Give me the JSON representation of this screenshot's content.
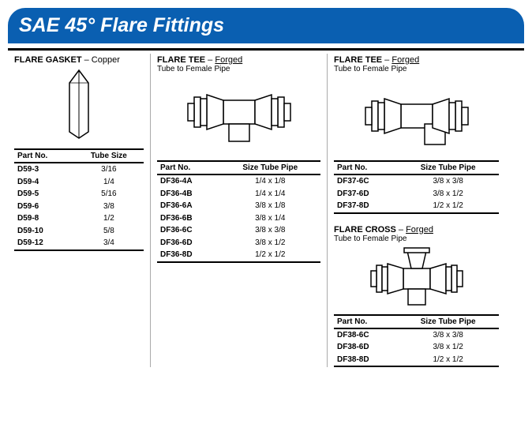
{
  "banner": "SAE 45° Flare Fittings",
  "colors": {
    "banner_bg": "#0a5fb1",
    "banner_fg": "#ffffff",
    "rule": "#000000"
  },
  "col1": {
    "gasket": {
      "title_bold": "FLARE GASKET",
      "title_rest": " – Copper",
      "headers": [
        "Part No.",
        "Tube Size"
      ],
      "rows": [
        [
          "D59-3",
          "3/16"
        ],
        [
          "D59-4",
          "1/4"
        ],
        [
          "D59-5",
          "5/16"
        ],
        [
          "D59-6",
          "3/8"
        ],
        [
          "D59-8",
          "1/2"
        ],
        [
          "D59-10",
          "5/8"
        ],
        [
          "D59-12",
          "3/4"
        ]
      ]
    }
  },
  "col2": {
    "tee": {
      "title_bold": "FLARE TEE",
      "title_dash": " – ",
      "title_u": "Forged",
      "subtitle": "Tube to Female Pipe",
      "headers": [
        "Part No.",
        "Size\nTube Pipe"
      ],
      "rows": [
        [
          "DF36-4A",
          "1/4 x 1/8"
        ],
        [
          "DF36-4B",
          "1/4 x 1/4"
        ],
        [
          "DF36-6A",
          "3/8 x 1/8"
        ],
        [
          "DF36-6B",
          "3/8 x 1/4"
        ],
        [
          "DF36-6C",
          "3/8 x 3/8"
        ],
        [
          "DF36-6D",
          "3/8 x 1/2"
        ],
        [
          "DF36-8D",
          "1/2 x 1/2"
        ]
      ]
    }
  },
  "col3": {
    "tee": {
      "title_bold": "FLARE TEE",
      "title_dash": " – ",
      "title_u": "Forged",
      "subtitle": "Tube to Female Pipe",
      "headers": [
        "Part No.",
        "Size\nTube Pipe"
      ],
      "rows": [
        [
          "DF37-6C",
          "3/8 x 3/8"
        ],
        [
          "DF37-6D",
          "3/8 x 1/2"
        ],
        [
          "DF37-8D",
          "1/2 x 1/2"
        ]
      ]
    },
    "cross": {
      "title_bold": "FLARE CROSS",
      "title_dash": " – ",
      "title_u": "Forged",
      "subtitle": "Tube to Female Pipe",
      "headers": [
        "Part No.",
        "Size\nTube Pipe"
      ],
      "rows": [
        [
          "DF38-6C",
          "3/8 x 3/8"
        ],
        [
          "DF38-6D",
          "3/8 x 1/2"
        ],
        [
          "DF38-8D",
          "1/2 x 1/2"
        ]
      ]
    }
  }
}
